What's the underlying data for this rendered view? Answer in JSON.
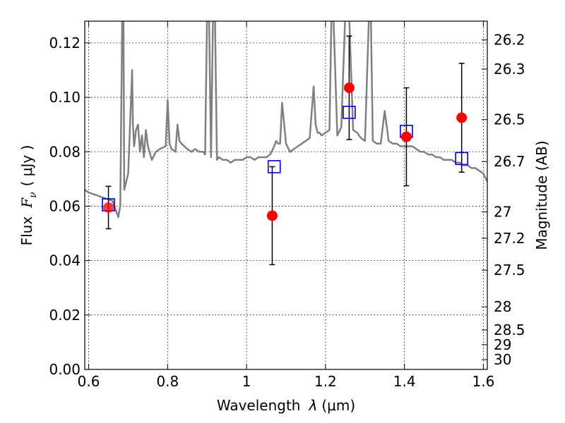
{
  "chart_data": {
    "type": "scatter",
    "xlabel": "Wavelength",
    "xlabel_symbol": "λ",
    "xlabel_unit": "(μm)",
    "ylabel": "Flux",
    "ylabel_symbol": "F",
    "ylabel_subscript": "ν",
    "ylabel_unit": "( μJy )",
    "y2label": "Magnitude (AB)",
    "xlim": [
      0.59,
      1.61
    ],
    "ylim": [
      0.0,
      0.128
    ],
    "grid": true,
    "x_ticks": [
      0.6,
      0.8,
      1.0,
      1.2,
      1.4,
      1.6
    ],
    "x_tick_labels": [
      "0.6",
      "0.8",
      "1",
      "1.2",
      "1.4",
      "1.6"
    ],
    "y_ticks": [
      0.0,
      0.02,
      0.04,
      0.06,
      0.08,
      0.1,
      0.12
    ],
    "y_tick_labels": [
      "0.00",
      "0.02",
      "0.04",
      "0.06",
      "0.08",
      "0.10",
      "0.12"
    ],
    "y2_ticks": [
      {
        "label": "26.2",
        "flux": 0.1211
      },
      {
        "label": "26.3",
        "flux": 0.1104
      },
      {
        "label": "26.5",
        "flux": 0.0918
      },
      {
        "label": "26.7",
        "flux": 0.0764
      },
      {
        "label": "27",
        "flux": 0.0579
      },
      {
        "label": "27.2",
        "flux": 0.0482
      },
      {
        "label": "27.5",
        "flux": 0.0365
      },
      {
        "label": "28",
        "flux": 0.023
      },
      {
        "label": "28.5",
        "flux": 0.0145
      },
      {
        "label": "29",
        "flux": 0.0091
      },
      {
        "label": "30",
        "flux": 0.0036
      }
    ],
    "series": [
      {
        "marker": "filled-circle",
        "color": "#ff0000",
        "x": [
          0.65,
          1.065,
          1.26,
          1.405,
          1.545
        ],
        "y": [
          0.0595,
          0.0565,
          0.1035,
          0.0855,
          0.0925
        ],
        "yerr": [
          0.0078,
          0.018,
          0.019,
          0.018,
          0.02
        ]
      },
      {
        "marker": "open-square",
        "color": "#0000cc",
        "x": [
          0.65,
          1.07,
          1.26,
          1.405,
          1.545
        ],
        "y": [
          0.0605,
          0.0745,
          0.0945,
          0.0875,
          0.0775
        ]
      },
      {
        "type": "line",
        "color": "#808080",
        "x": [
          0.59,
          0.6,
          0.62,
          0.64,
          0.66,
          0.67,
          0.675,
          0.68,
          0.685,
          0.688,
          0.69,
          0.7,
          0.71,
          0.712,
          0.715,
          0.72,
          0.725,
          0.73,
          0.735,
          0.74,
          0.745,
          0.75,
          0.76,
          0.77,
          0.78,
          0.795,
          0.8,
          0.805,
          0.81,
          0.82,
          0.825,
          0.83,
          0.835,
          0.85,
          0.86,
          0.87,
          0.88,
          0.89,
          0.895,
          0.9,
          0.905,
          0.91,
          0.915,
          0.92,
          0.925,
          0.93,
          0.94,
          0.95,
          0.96,
          0.97,
          0.98,
          0.99,
          1.0,
          1.01,
          1.02,
          1.03,
          1.04,
          1.05,
          1.06,
          1.07,
          1.075,
          1.08,
          1.085,
          1.09,
          1.1,
          1.11,
          1.12,
          1.13,
          1.14,
          1.15,
          1.16,
          1.17,
          1.175,
          1.18,
          1.185,
          1.19,
          1.2,
          1.21,
          1.215,
          1.22,
          1.23,
          1.24,
          1.25,
          1.26,
          1.27,
          1.28,
          1.29,
          1.3,
          1.31,
          1.315,
          1.32,
          1.33,
          1.34,
          1.35,
          1.36,
          1.37,
          1.375,
          1.38,
          1.39,
          1.4,
          1.41,
          1.42,
          1.43,
          1.44,
          1.45,
          1.46,
          1.47,
          1.48,
          1.49,
          1.5,
          1.51,
          1.52,
          1.53,
          1.54,
          1.55,
          1.56,
          1.57,
          1.58,
          1.59,
          1.6,
          1.61
        ],
        "y": [
          0.066,
          0.065,
          0.064,
          0.063,
          0.062,
          0.058,
          0.056,
          0.06,
          0.13,
          0.13,
          0.066,
          0.072,
          0.11,
          0.09,
          0.082,
          0.088,
          0.09,
          0.08,
          0.086,
          0.078,
          0.088,
          0.082,
          0.077,
          0.08,
          0.081,
          0.082,
          0.099,
          0.083,
          0.081,
          0.08,
          0.09,
          0.084,
          0.083,
          0.081,
          0.08,
          0.081,
          0.08,
          0.08,
          0.079,
          0.13,
          0.13,
          0.078,
          0.13,
          0.13,
          0.077,
          0.078,
          0.077,
          0.077,
          0.076,
          0.077,
          0.077,
          0.077,
          0.078,
          0.078,
          0.077,
          0.078,
          0.078,
          0.078,
          0.079,
          0.082,
          0.084,
          0.083,
          0.083,
          0.098,
          0.083,
          0.08,
          0.081,
          0.082,
          0.083,
          0.084,
          0.085,
          0.104,
          0.09,
          0.087,
          0.087,
          0.086,
          0.087,
          0.088,
          0.13,
          0.13,
          0.086,
          0.089,
          0.13,
          0.13,
          0.088,
          0.087,
          0.085,
          0.084,
          0.13,
          0.13,
          0.084,
          0.083,
          0.083,
          0.095,
          0.084,
          0.083,
          0.083,
          0.083,
          0.082,
          0.082,
          0.082,
          0.082,
          0.081,
          0.08,
          0.08,
          0.079,
          0.079,
          0.078,
          0.078,
          0.077,
          0.077,
          0.077,
          0.076,
          0.076,
          0.075,
          0.075,
          0.074,
          0.074,
          0.073,
          0.072,
          0.069
        ]
      }
    ]
  }
}
